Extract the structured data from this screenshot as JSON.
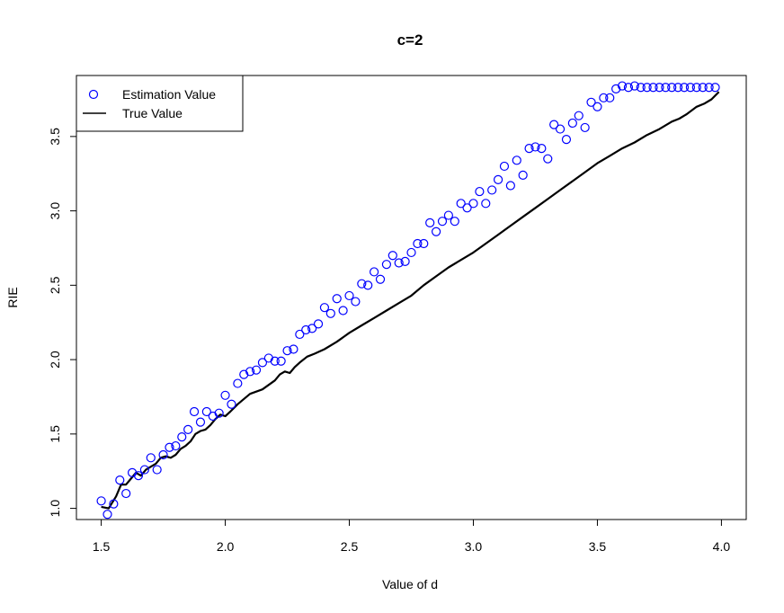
{
  "chart_data": {
    "type": "scatter",
    "title": "c=2",
    "xlabel": "Value of d",
    "ylabel": "RIE",
    "xlim": [
      1.4,
      4.1
    ],
    "ylim": [
      0.925,
      3.91
    ],
    "x_ticks": [
      "1.5",
      "2.0",
      "2.5",
      "3.0",
      "3.5",
      "4.0"
    ],
    "y_ticks": [
      "1.0",
      "1.5",
      "2.0",
      "2.5",
      "3.0",
      "3.5"
    ],
    "legend": {
      "position": "top-left",
      "entries": [
        {
          "label": "Estimation Value",
          "style": "point",
          "color": "#0000ff"
        },
        {
          "label": "True Value",
          "style": "line",
          "color": "#000000"
        }
      ]
    },
    "series": [
      {
        "name": "Estimation Value",
        "style": "points",
        "color": "#0000ff",
        "x": [
          1.5,
          1.525,
          1.55,
          1.575,
          1.6,
          1.625,
          1.65,
          1.675,
          1.7,
          1.725,
          1.75,
          1.775,
          1.8,
          1.825,
          1.85,
          1.875,
          1.9,
          1.925,
          1.95,
          1.975,
          2.0,
          2.025,
          2.05,
          2.075,
          2.1,
          2.125,
          2.15,
          2.175,
          2.2,
          2.225,
          2.25,
          2.275,
          2.3,
          2.325,
          2.35,
          2.375,
          2.4,
          2.425,
          2.45,
          2.475,
          2.5,
          2.525,
          2.55,
          2.575,
          2.6,
          2.625,
          2.65,
          2.675,
          2.7,
          2.725,
          2.75,
          2.775,
          2.8,
          2.825,
          2.85,
          2.875,
          2.9,
          2.925,
          2.95,
          2.975,
          3.0,
          3.025,
          3.05,
          3.075,
          3.1,
          3.125,
          3.15,
          3.175,
          3.2,
          3.225,
          3.25,
          3.275,
          3.3,
          3.325,
          3.35,
          3.375,
          3.4,
          3.425,
          3.45,
          3.475,
          3.5,
          3.525,
          3.55,
          3.575,
          3.6,
          3.625,
          3.65,
          3.675,
          3.7,
          3.725,
          3.75,
          3.775,
          3.8,
          3.825,
          3.85,
          3.875,
          3.9,
          3.925,
          3.95,
          3.975
        ],
        "y": [
          1.05,
          0.96,
          1.03,
          1.19,
          1.1,
          1.24,
          1.22,
          1.26,
          1.34,
          1.26,
          1.36,
          1.41,
          1.42,
          1.48,
          1.53,
          1.65,
          1.58,
          1.65,
          1.62,
          1.64,
          1.76,
          1.7,
          1.84,
          1.9,
          1.92,
          1.93,
          1.98,
          2.01,
          1.99,
          1.99,
          2.06,
          2.07,
          2.17,
          2.2,
          2.21,
          2.24,
          2.35,
          2.31,
          2.41,
          2.33,
          2.43,
          2.39,
          2.51,
          2.5,
          2.59,
          2.54,
          2.64,
          2.7,
          2.65,
          2.66,
          2.72,
          2.78,
          2.78,
          2.92,
          2.86,
          2.93,
          2.97,
          2.93,
          3.05,
          3.02,
          3.05,
          3.13,
          3.05,
          3.14,
          3.21,
          3.3,
          3.17,
          3.34,
          3.24,
          3.42,
          3.43,
          3.42,
          3.35,
          3.58,
          3.55,
          3.48,
          3.59,
          3.64,
          3.56,
          3.73,
          3.7,
          3.76,
          3.76,
          3.82,
          3.84,
          3.83,
          3.84,
          3.83,
          3.83,
          3.83,
          3.83,
          3.83,
          3.83,
          3.83,
          3.83,
          3.83,
          3.83,
          3.83,
          3.83,
          3.83
        ]
      },
      {
        "name": "True Value",
        "style": "line",
        "color": "#000000",
        "x": [
          1.5,
          1.53,
          1.56,
          1.58,
          1.6,
          1.62,
          1.64,
          1.66,
          1.68,
          1.7,
          1.72,
          1.74,
          1.76,
          1.78,
          1.8,
          1.82,
          1.84,
          1.86,
          1.88,
          1.9,
          1.92,
          1.94,
          1.96,
          1.98,
          2.0,
          2.02,
          2.05,
          2.1,
          2.15,
          2.2,
          2.22,
          2.24,
          2.26,
          2.28,
          2.3,
          2.33,
          2.36,
          2.4,
          2.45,
          2.5,
          2.55,
          2.6,
          2.65,
          2.7,
          2.75,
          2.8,
          2.85,
          2.9,
          2.95,
          3.0,
          3.05,
          3.1,
          3.15,
          3.2,
          3.25,
          3.3,
          3.35,
          3.4,
          3.45,
          3.5,
          3.55,
          3.6,
          3.65,
          3.7,
          3.75,
          3.8,
          3.83,
          3.86,
          3.9,
          3.93,
          3.96,
          3.99
        ],
        "y": [
          1.01,
          1.0,
          1.08,
          1.16,
          1.16,
          1.2,
          1.24,
          1.22,
          1.26,
          1.28,
          1.3,
          1.34,
          1.35,
          1.34,
          1.36,
          1.4,
          1.42,
          1.45,
          1.5,
          1.52,
          1.53,
          1.56,
          1.6,
          1.63,
          1.62,
          1.65,
          1.7,
          1.77,
          1.8,
          1.86,
          1.9,
          1.92,
          1.91,
          1.95,
          1.98,
          2.02,
          2.04,
          2.07,
          2.12,
          2.18,
          2.23,
          2.28,
          2.33,
          2.38,
          2.43,
          2.5,
          2.56,
          2.62,
          2.67,
          2.72,
          2.78,
          2.84,
          2.9,
          2.96,
          3.02,
          3.08,
          3.14,
          3.2,
          3.26,
          3.32,
          3.37,
          3.42,
          3.46,
          3.51,
          3.55,
          3.6,
          3.62,
          3.65,
          3.7,
          3.72,
          3.75,
          3.8
        ]
      }
    ]
  }
}
